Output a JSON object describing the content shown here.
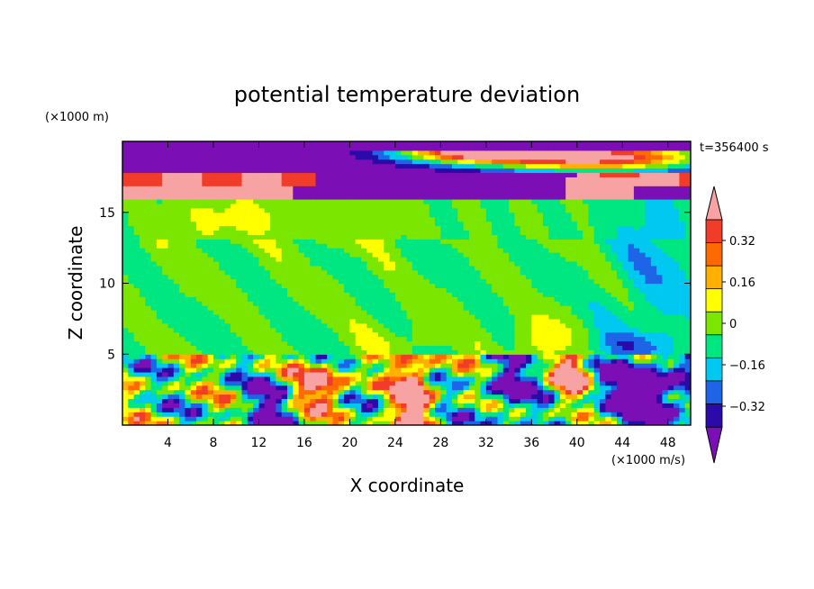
{
  "chart_data": {
    "type": "heatmap",
    "title": "potential temperature deviation",
    "xlabel": "X coordinate",
    "ylabel": "Z coordinate",
    "x_unit": "(×1000 m/s)",
    "y_unit": "(×1000 m)",
    "annotation": "t=356400 s",
    "xlim": [
      0,
      50
    ],
    "ylim": [
      0,
      20
    ],
    "x_ticks": [
      4,
      8,
      12,
      16,
      20,
      24,
      28,
      32,
      36,
      40,
      44,
      48
    ],
    "y_ticks": [
      5,
      10,
      15
    ],
    "colorbar": {
      "levels": [
        -0.4,
        -0.32,
        -0.24,
        -0.16,
        -0.08,
        0,
        0.08,
        0.16,
        0.24,
        0.32,
        0.4
      ],
      "labels": [
        "0.32",
        "0.16",
        "0",
        "−0.16",
        "−0.32"
      ],
      "label_values": [
        0.32,
        0.16,
        0,
        -0.16,
        -0.32
      ],
      "colors": [
        "#7b0fb5",
        "#2a0aa8",
        "#1e64e6",
        "#00c8f0",
        "#00e680",
        "#7be600",
        "#ffff00",
        "#ffb000",
        "#ff6a00",
        "#f03c28",
        "#f7a3a3"
      ],
      "extend": "both"
    },
    "bands": [
      {
        "z": [
          17.0,
          20.0
        ],
        "level": -0.4
      },
      {
        "z": [
          16.5,
          17.5
        ],
        "level": 0.4
      },
      {
        "z": [
          15.8,
          16.4
        ],
        "level": -0.4
      },
      {
        "z": [
          5.0,
          15.8
        ],
        "level": 0
      },
      {
        "z": [
          0.0,
          5.0
        ],
        "level": "mixed"
      }
    ]
  }
}
